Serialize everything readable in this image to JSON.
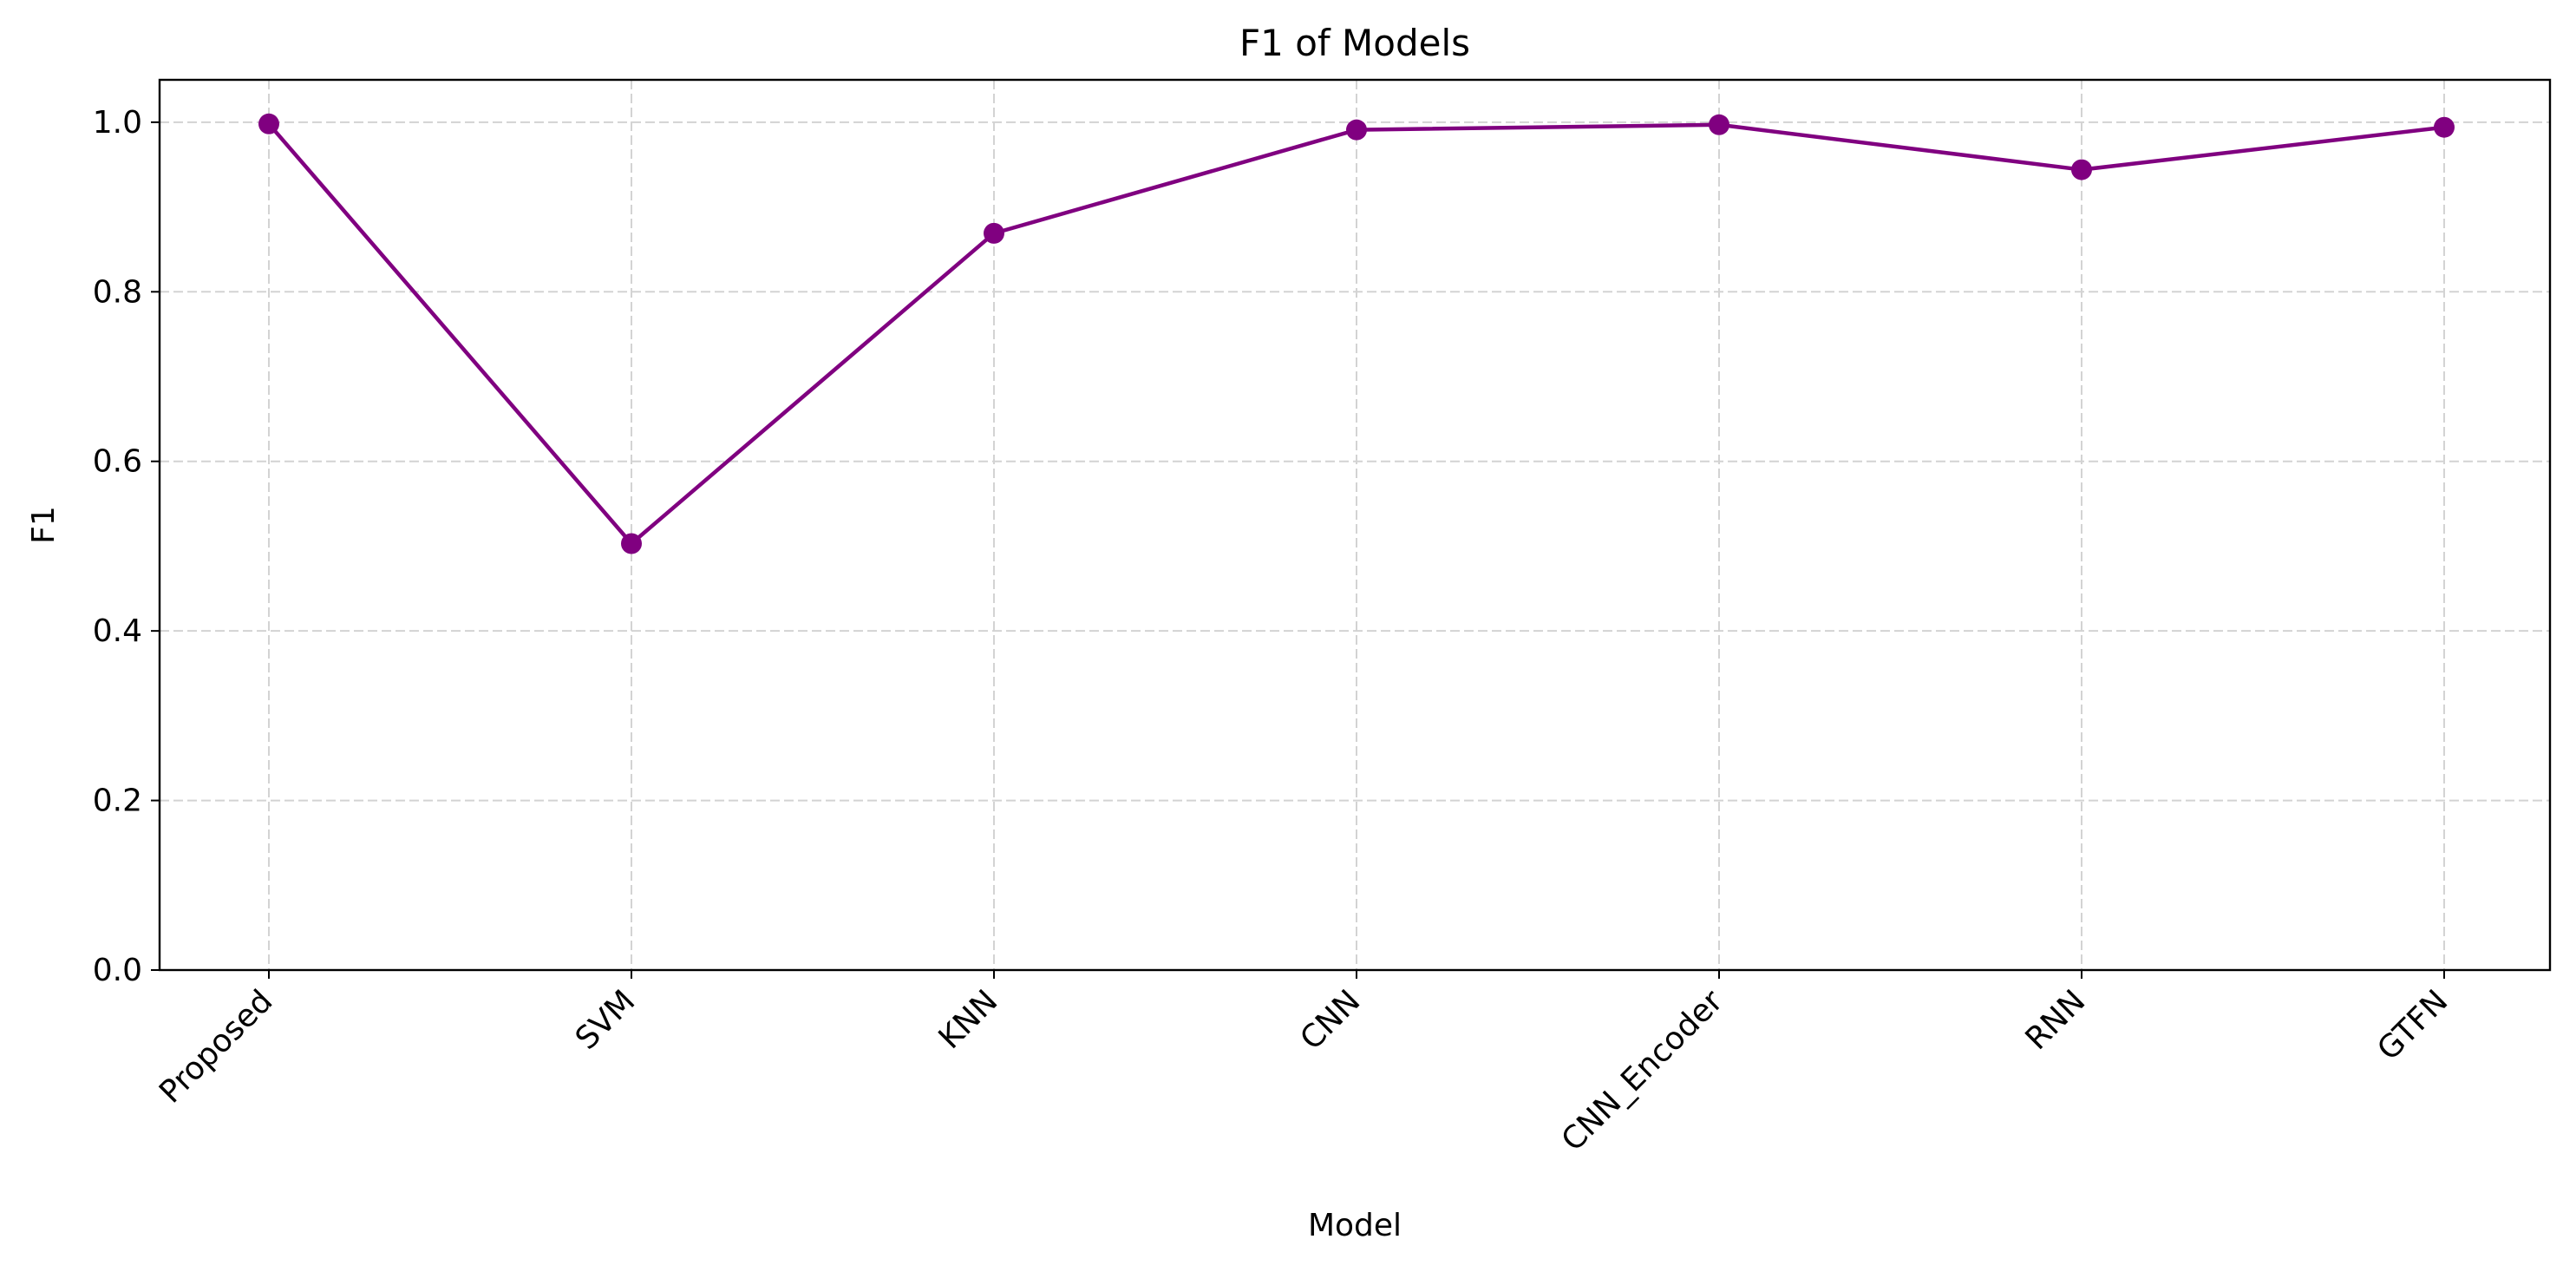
{
  "chart_data": {
    "type": "line",
    "title": "F1 of Models",
    "xlabel": "Model",
    "ylabel": "F1",
    "categories": [
      "Proposed",
      "SVM",
      "KNN",
      "CNN",
      "CNN_Encoder",
      "RNN",
      "GTFN"
    ],
    "series": [
      {
        "values": [
          0.998,
          0.503,
          0.869,
          0.991,
          0.997,
          0.944,
          0.994
        ]
      }
    ],
    "ylim": [
      0.0,
      1.05
    ],
    "yticks": [
      "0.0",
      "0.2",
      "0.4",
      "0.6",
      "0.8",
      "1.0"
    ],
    "grid": true,
    "line_color": "#800080",
    "marker": "circle"
  }
}
